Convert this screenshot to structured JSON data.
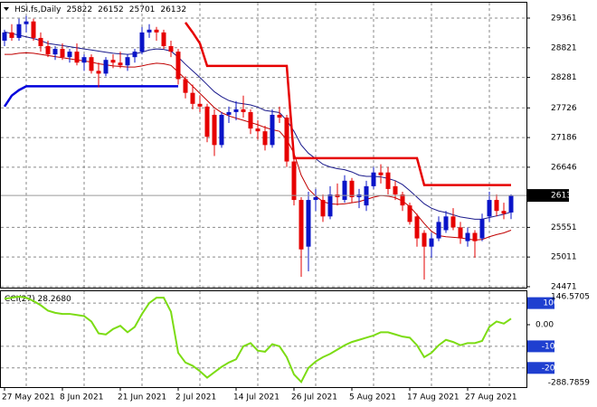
{
  "chart_data": [
    {
      "type": "candlestick",
      "title": "HSI.fs,Daily",
      "categories": [
        "27 May 2021",
        null,
        null,
        null,
        null,
        null,
        null,
        null,
        "8 Jun 2021",
        null,
        null,
        null,
        null,
        null,
        null,
        null,
        "21 Jun 2021",
        null,
        null,
        null,
        null,
        null,
        null,
        null,
        "2 Jul 2021",
        null,
        null,
        null,
        null,
        null,
        null,
        null,
        "14 Jul 2021",
        null,
        null,
        null,
        null,
        null,
        null,
        null,
        "26 Jul 2021",
        null,
        null,
        null,
        null,
        null,
        null,
        null,
        "5 Aug 2021",
        null,
        null,
        null,
        null,
        null,
        null,
        null,
        "17 Aug 2021",
        null,
        null,
        null,
        null,
        null,
        null,
        null,
        "27 Aug 2021",
        null,
        null,
        null,
        null,
        null,
        null
      ],
      "open": [
        28950,
        29100,
        29000,
        29250,
        29300,
        29000,
        28850,
        28700,
        28800,
        28650,
        28750,
        28550,
        28650,
        28400,
        28350,
        28600,
        28550,
        28500,
        28650,
        28750,
        29100,
        29150,
        29100,
        28850,
        28750,
        28250,
        28000,
        27800,
        27750,
        27600,
        27050,
        27600,
        27650,
        27700,
        27650,
        27350,
        27300,
        27050,
        27600,
        27550,
        26750,
        26050,
        25200,
        26050,
        26050,
        25750,
        26150,
        26050,
        26400,
        26100,
        25950,
        26300,
        26550,
        26550,
        26300,
        26150,
        25950,
        25750,
        25450,
        25200,
        25350,
        25500,
        25750,
        25550,
        25300,
        25450,
        25350,
        25750,
        26050,
        25850,
        25822
      ],
      "high": [
        29150,
        29250,
        29350,
        29400,
        29350,
        29100,
        28950,
        28850,
        28900,
        28800,
        28900,
        28700,
        28700,
        28550,
        28650,
        28700,
        28750,
        28700,
        28800,
        29200,
        29250,
        29200,
        29150,
        28950,
        28800,
        28300,
        28150,
        27950,
        27800,
        27700,
        27650,
        27750,
        27850,
        27950,
        27700,
        27500,
        27400,
        27700,
        27750,
        27600,
        26800,
        26100,
        26200,
        26250,
        26150,
        26300,
        26350,
        26500,
        26450,
        26250,
        26400,
        26650,
        26700,
        26650,
        26400,
        26200,
        26000,
        25800,
        25500,
        25450,
        25750,
        25850,
        25900,
        25650,
        25550,
        25500,
        25800,
        26200,
        26150,
        26000,
        26152
      ],
      "low": [
        28850,
        28950,
        28950,
        29100,
        28950,
        28750,
        28650,
        28600,
        28600,
        28550,
        28500,
        28400,
        28350,
        28100,
        28300,
        28450,
        28450,
        28400,
        28550,
        28700,
        29000,
        28950,
        28800,
        28650,
        28150,
        27900,
        27700,
        27650,
        27100,
        26850,
        27000,
        27450,
        27500,
        27550,
        27250,
        27150,
        26950,
        27000,
        27450,
        26650,
        25950,
        24650,
        24750,
        25850,
        25650,
        25700,
        25950,
        26000,
        26000,
        25900,
        25850,
        26250,
        26350,
        26150,
        26050,
        25850,
        25600,
        25200,
        24600,
        25000,
        25300,
        25450,
        25500,
        25250,
        25200,
        25000,
        25300,
        25650,
        25750,
        25700,
        25701
      ],
      "close": [
        29100,
        29000,
        29250,
        29300,
        29000,
        28850,
        28700,
        28800,
        28650,
        28750,
        28550,
        28650,
        28400,
        28350,
        28600,
        28550,
        28500,
        28650,
        28750,
        29100,
        29150,
        29100,
        28850,
        28750,
        28250,
        28000,
        27800,
        27750,
        27200,
        27050,
        27600,
        27650,
        27700,
        27650,
        27350,
        27300,
        27050,
        27600,
        27550,
        26750,
        26050,
        25150,
        26050,
        26100,
        25750,
        26150,
        26100,
        26400,
        26100,
        26150,
        26300,
        26550,
        26500,
        26250,
        26150,
        25950,
        25650,
        25350,
        25200,
        25350,
        25650,
        25750,
        25550,
        25350,
        25450,
        25300,
        25700,
        26050,
        25850,
        25800,
        26132
      ],
      "up_color": "#0a14c8",
      "down_color": "#e60000",
      "overlays": [
        {
          "color": "#1a1a8c",
          "values": [
            29110,
            29080,
            29050,
            29020,
            28990,
            28950,
            28900,
            28880,
            28860,
            28840,
            28820,
            28800,
            28780,
            28760,
            28740,
            28720,
            28710,
            28700,
            28710,
            28740,
            28780,
            28800,
            28790,
            28760,
            28650,
            28520,
            28400,
            28280,
            28150,
            28020,
            27930,
            27860,
            27820,
            27800,
            27780,
            27740,
            27680,
            27660,
            27640,
            27500,
            27300,
            27050,
            26900,
            26800,
            26700,
            26650,
            26620,
            26600,
            26560,
            26500,
            26480,
            26480,
            26470,
            26440,
            26400,
            26330,
            26220,
            26100,
            25980,
            25900,
            25850,
            25820,
            25780,
            25740,
            25720,
            25700,
            25700,
            25730,
            25760,
            25790,
            25830
          ]
        },
        {
          "color": "#c00000",
          "values": [
            28700,
            28700,
            28720,
            28730,
            28720,
            28700,
            28680,
            28660,
            28640,
            28620,
            28600,
            28580,
            28560,
            28530,
            28510,
            28490,
            28480,
            28470,
            28470,
            28490,
            28520,
            28540,
            28530,
            28500,
            28380,
            28250,
            28120,
            27990,
            27860,
            27730,
            27640,
            27580,
            27540,
            27500,
            27460,
            27420,
            27370,
            27330,
            27300,
            27150,
            26900,
            26500,
            26250,
            26120,
            26020,
            25980,
            25970,
            25980,
            26000,
            26020,
            26060,
            26100,
            26130,
            26120,
            26090,
            26030,
            25930,
            25780,
            25620,
            25480,
            25400,
            25380,
            25370,
            25360,
            25340,
            25320,
            25330,
            25380,
            25420,
            25450,
            25500
          ]
        },
        {
          "color": "#0000dc",
          "values": [
            27750,
            27950,
            28050,
            28120,
            28120,
            28120,
            28120,
            28120,
            28120,
            28120,
            28120,
            28120,
            28120,
            28120,
            28120,
            28120,
            28120,
            28120,
            28120,
            28120,
            28120,
            28120,
            28120,
            28120,
            28120,
            null,
            null,
            null,
            null,
            null,
            null,
            null,
            null,
            null,
            null,
            null,
            null,
            null,
            null,
            null,
            null,
            null,
            null,
            null,
            null,
            null,
            null,
            null,
            null,
            null,
            null,
            null,
            null,
            null,
            null,
            null,
            null,
            null,
            null,
            null,
            null,
            null,
            null,
            null,
            null,
            null,
            null,
            null,
            null,
            null,
            null
          ]
        },
        {
          "color": "#e60000",
          "values": [
            null,
            null,
            null,
            null,
            null,
            null,
            null,
            null,
            null,
            null,
            null,
            null,
            null,
            null,
            null,
            null,
            null,
            null,
            null,
            null,
            null,
            null,
            null,
            null,
            null,
            29280,
            29100,
            28900,
            28490,
            28490,
            28490,
            28490,
            28490,
            28490,
            28490,
            28490,
            28490,
            28490,
            28490,
            28490,
            26810,
            26810,
            26810,
            26810,
            26810,
            26810,
            26810,
            26810,
            26810,
            26810,
            26810,
            26810,
            26810,
            26810,
            26810,
            26810,
            26810,
            26810,
            26320,
            26320,
            26320,
            26320,
            26320,
            26320,
            26320,
            26320,
            26320,
            26320,
            26320,
            26320,
            26320
          ]
        }
      ],
      "ylim": [
        24454,
        29608
      ],
      "yticks": [
        24471,
        25011,
        25551,
        26646,
        27186,
        27726,
        28281,
        28821,
        29361
      ],
      "grid": true
    },
    {
      "type": "line",
      "title": "CCI(27) 28.2680",
      "color": "#7cdc14",
      "values": [
        120,
        125,
        130,
        125,
        110,
        90,
        65,
        55,
        50,
        50,
        45,
        40,
        15,
        -40,
        -45,
        -20,
        -5,
        -35,
        -10,
        50,
        100,
        125,
        125,
        60,
        -130,
        -175,
        -190,
        -215,
        -245,
        -220,
        -195,
        -175,
        -160,
        -100,
        -85,
        -120,
        -125,
        -90,
        -100,
        -150,
        -230,
        -265,
        -200,
        -170,
        -150,
        -135,
        -115,
        -95,
        -80,
        -70,
        -60,
        -50,
        -35,
        -35,
        -45,
        -55,
        -60,
        -95,
        -150,
        -130,
        -95,
        -70,
        -80,
        -95,
        -85,
        -85,
        -75,
        -10,
        15,
        5,
        28.268
      ],
      "ylim": [
        -288.7859,
        146.5705
      ],
      "yticks": [
        {
          "value": 0,
          "label": "0.00"
        }
      ],
      "levels": [
        100,
        -100,
        -200
      ],
      "level_color": "#1f3fd0"
    }
  ]
}
